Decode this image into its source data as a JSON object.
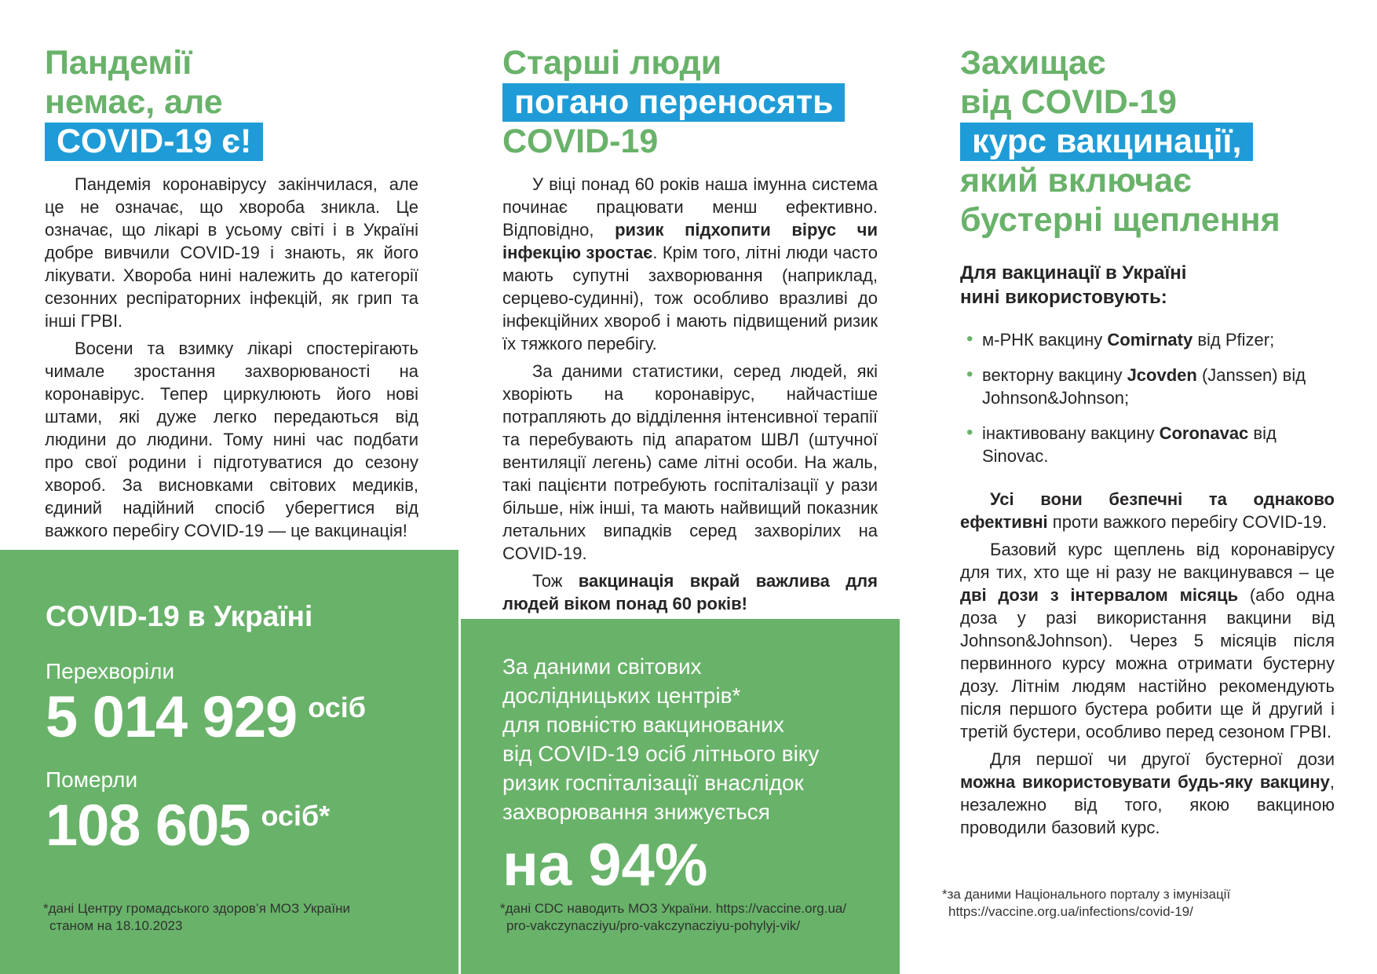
{
  "colors": {
    "accent_green": "#69b26a",
    "accent_blue": "#1f9cd7",
    "text_dark": "#272425",
    "white": "#ffffff"
  },
  "left": {
    "heading": {
      "line1": "Пандемії",
      "line2": "немає, але",
      "highlight": "COVID-19 є!"
    },
    "paragraphs": [
      [
        {
          "t": "Пандемія коронавірусу закінчилася, але це не означає, що хвороба зникла. Це означає, що лікарі в усьому світі і в Україні добре вивчили COVID-19 і знають, як його лікувати. Хвороба нині належить до категорії сезонних респіраторних інфекцій, як грип та інші ГРВІ."
        }
      ],
      [
        {
          "t": "Восени та взимку лікарі спостерігають чимале зростання захворюваності на коронавірус. Тепер циркулюють його нові штами, які дуже легко передаються від людини до людини. Тому нині час подбати про свої родини і підготуватися до сезону хвороб. За висновками світових медиків, єдиний надійний спосіб уберегтися від важкого перебігу COVID-19 — це вакцинація!"
        }
      ]
    ],
    "stats": {
      "title": "COVID-19 в Україні",
      "recovered_label": "Перехворіли",
      "recovered_value": "5 014 929",
      "recovered_unit": "осіб",
      "died_label": "Померли",
      "died_value": "108 605",
      "died_unit": "осіб*",
      "footnote_line1": "*дані Центру громадського здоров’я МОЗ України",
      "footnote_line2": "станом на 18.10.2023"
    }
  },
  "middle": {
    "heading": {
      "line1": "Старші люди",
      "highlight": "погано переносять",
      "line3": "COVID-19"
    },
    "paragraphs": [
      [
        {
          "t": "У віці понад 60 років наша імунна система починає працювати менш ефективно. Відповідно, "
        },
        {
          "t": "ризик підхопити вірус чи інфекцію зростає",
          "b": true
        },
        {
          "t": ". Крім того, літні люди часто мають супутні захворювання (наприклад, серцево-судинні), тож особливо вразливі до інфекційних хвороб і мають підвищений ризик їх тяжкого перебігу."
        }
      ],
      [
        {
          "t": "За даними статистики, серед людей, які хворіють на коронавірус, найчастіше потрапляють до відділення інтенсивної терапії та перебувають під апаратом ШВЛ (штучної вентиляції легень) саме літні особи. На жаль, такі пацієнти потребують госпіталізації у рази більше, ніж інші, та мають найвищий показник летальних випадків серед захворілих на COVID-19."
        }
      ],
      [
        {
          "t": "Тож "
        },
        {
          "t": "вакцинація вкрай важлива для людей віком понад 60 років!",
          "b": true
        }
      ]
    ],
    "box": {
      "lines": [
        "За даними світових",
        "дослідницьких центрів*",
        "для повністю вакцинованих",
        "від COVID-19 осіб літнього віку",
        "ризик госпіталізації внаслідок",
        "захворювання знижується"
      ],
      "big": "на 94%",
      "footnote_line1": "*дані CDC наводить МОЗ України. https://vaccine.org.ua/",
      "footnote_line2": "pro-vakczynacziyu/pro-vakczynacziyu-pohylyj-vik/"
    }
  },
  "right": {
    "heading": {
      "line1": "Захищає",
      "line2": "від COVID-19",
      "highlight": "курс вакцинації,",
      "line4": "який включає",
      "line5": "бустерні щеплення"
    },
    "intro_line1": "Для вакцинації в Україні",
    "intro_line2": "нині використовують:",
    "bullet_glyph": "•",
    "bullets": [
      [
        {
          "t": "м-РНК вакцину "
        },
        {
          "t": "Comirnaty",
          "b": true
        },
        {
          "t": " від Pfizer;"
        }
      ],
      [
        {
          "t": "векторну вакцину "
        },
        {
          "t": "Jcovden",
          "b": true
        },
        {
          "t": " (Janssen) від Johnson&Johnson;"
        }
      ],
      [
        {
          "t": "інактивовану вакцину "
        },
        {
          "t": "Coronavac",
          "b": true
        },
        {
          "t": " від Sinovac."
        }
      ]
    ],
    "paragraphs": [
      [
        {
          "t": "Усі вони безпечні та однаково ефективні",
          "b": true
        },
        {
          "t": " проти важкого перебігу COVID-19."
        }
      ],
      [
        {
          "t": "Базовий курс щеплень від коронавірусу для тих, хто ще ні разу не вакцинувався – це "
        },
        {
          "t": "дві дози з інтервалом місяць",
          "b": true
        },
        {
          "t": " (або одна доза у разі використання вакцини від Johnson&Johnson). Через 5 місяців після первинного курсу можна отримати бустерну дозу. Літнім людям настійно рекомендують після першого бустера робити ще й другий і третій бустери, особливо перед сезоном ГРВІ."
        }
      ],
      [
        {
          "t": "Для першої чи другої бустерної дози "
        },
        {
          "t": "можна використовувати будь-яку вакцину",
          "b": true
        },
        {
          "t": ", незалежно від того, якою вакциною проводили базовий курс."
        }
      ]
    ],
    "footnote_line1": "*за даними Національного порталу з імунізації",
    "footnote_line2": "https://vaccine.org.ua/infections/covid-19/"
  }
}
